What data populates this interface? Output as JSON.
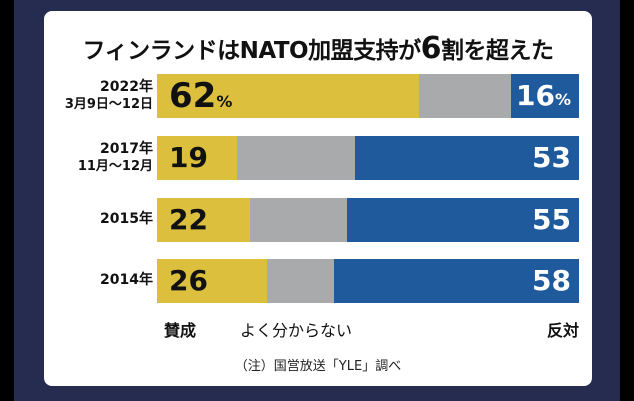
{
  "title": {
    "prefix": "フィンランドはNATO加盟支持が",
    "big": "6",
    "suffix": "割を超えた"
  },
  "legend": {
    "support": "賛成",
    "unknown": "よく分からない",
    "oppose": "反対"
  },
  "note": "（注）国営放送「YLE」調べ",
  "colors": {
    "support": "#dcbf3c",
    "unknown": "#a8aaac",
    "oppose": "#1f5b9c",
    "frame": "#252c4f"
  },
  "chart_data": {
    "type": "bar",
    "stacked": true,
    "orientation": "horizontal",
    "title": "フィンランドはNATO加盟支持が6割を超えた",
    "unit": "%",
    "categories": [
      {
        "year": "2022年",
        "period": "3月9日〜12日"
      },
      {
        "year": "2017年",
        "period": "11月〜12月"
      },
      {
        "year": "2015年",
        "period": ""
      },
      {
        "year": "2014年",
        "period": ""
      }
    ],
    "series": [
      {
        "name": "賛成",
        "values": [
          62,
          19,
          22,
          26
        ]
      },
      {
        "name": "よく分からない",
        "values": [
          22,
          28,
          23,
          16
        ]
      },
      {
        "name": "反対",
        "values": [
          16,
          53,
          55,
          58
        ]
      }
    ],
    "value_labels": {
      "support": [
        "62",
        "19",
        "22",
        "26"
      ],
      "oppose": [
        "16",
        "53",
        "55",
        "58"
      ],
      "first_row_suffix": "%"
    },
    "xlim": [
      0,
      100
    ],
    "grid": false,
    "legend_position": "bottom",
    "source": "（注）国営放送「YLE」調べ"
  }
}
